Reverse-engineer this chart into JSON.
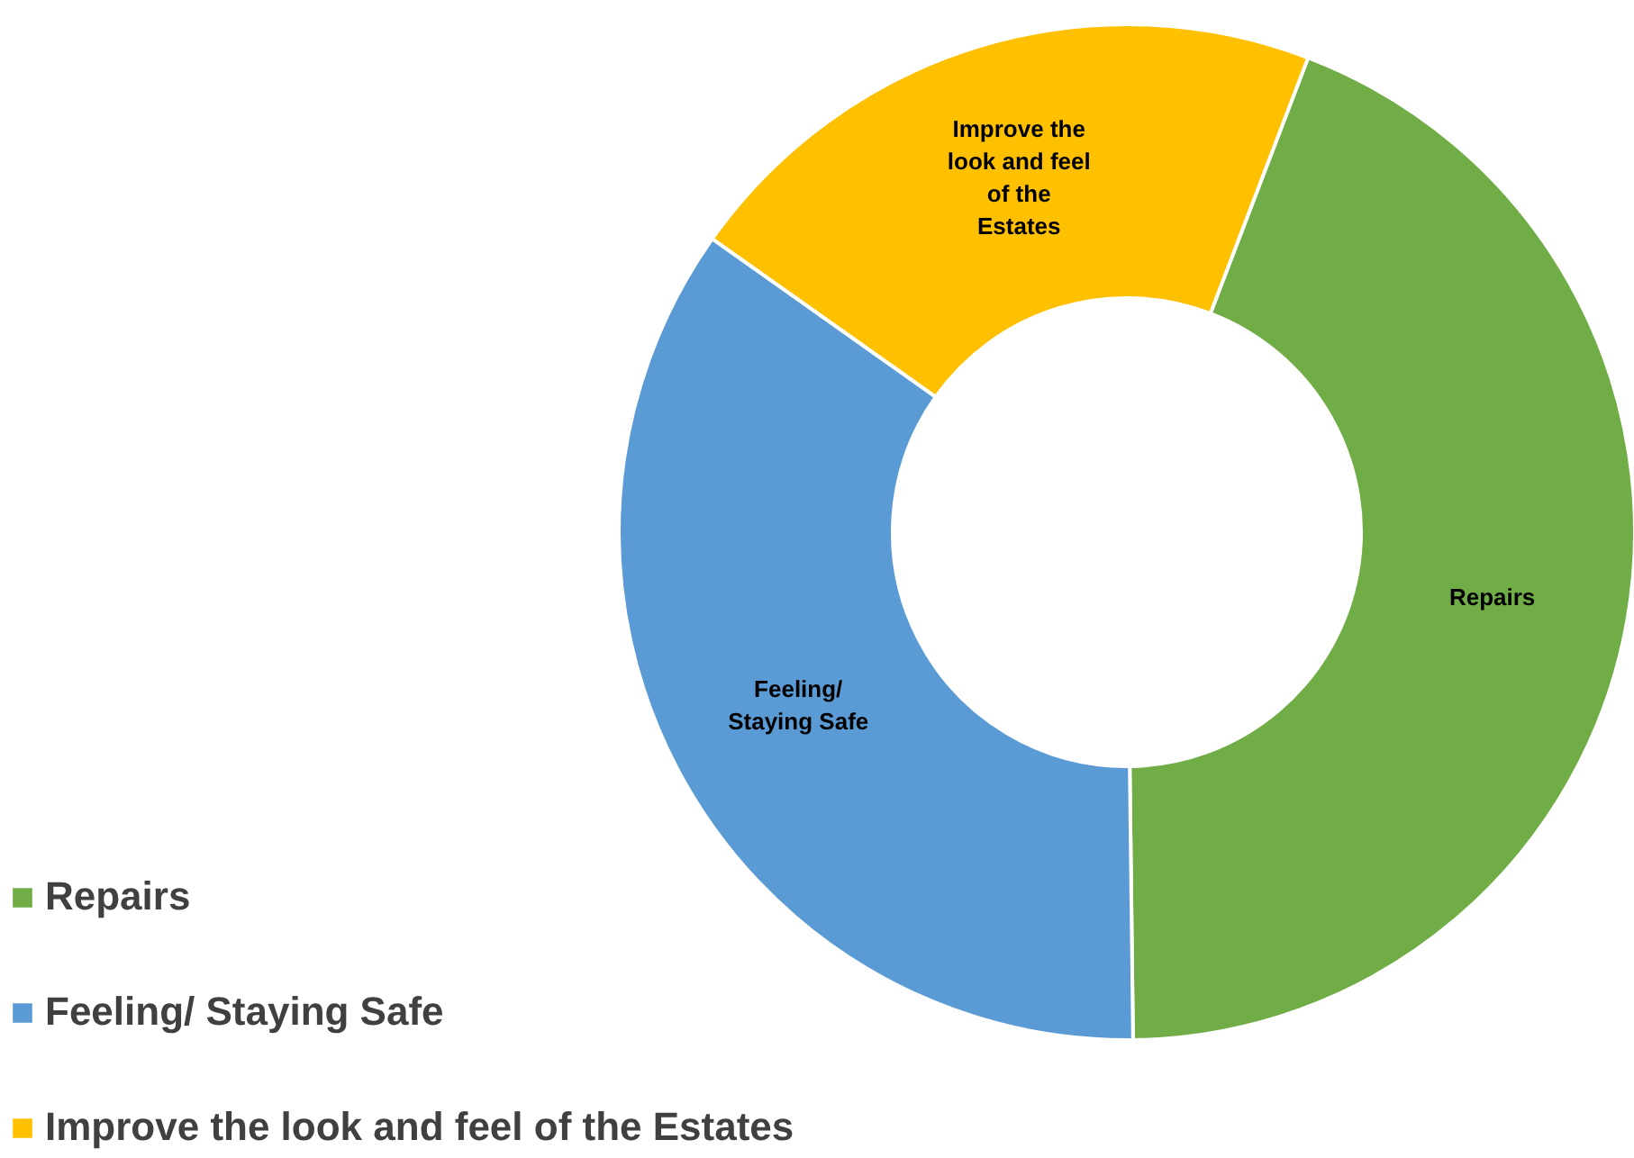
{
  "chart_data": {
    "type": "donut",
    "categories": [
      "Repairs",
      "Feeling/ Staying Safe",
      "Improve the look and feel of the Estates"
    ],
    "values": [
      44,
      35,
      21
    ],
    "colors": [
      "#70ad47",
      "#5b9bd5",
      "#ffc000"
    ],
    "legend": "bottom left"
  }
}
